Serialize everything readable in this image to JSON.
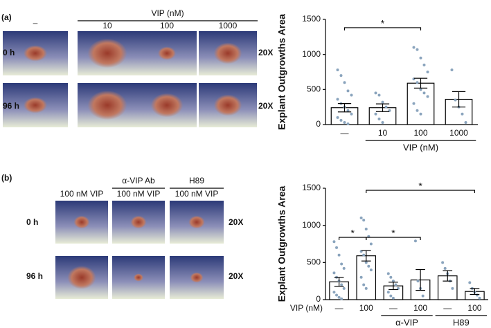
{
  "figure": {
    "panels": [
      {
        "label": "(a)",
        "group_label": "VIP (nM)",
        "columns": [
          "–",
          "10",
          "100",
          "1000"
        ],
        "rows": [
          "0 h",
          "96 h"
        ],
        "magnification": "20X"
      },
      {
        "label": "(b)",
        "column_groups": [
          "α-VIP Ab",
          "H89"
        ],
        "columns": [
          "100 nM VIP",
          "100 nM VIP",
          "100 nM VIP"
        ],
        "rows": [
          "0 h",
          "96 h"
        ],
        "magnification": "20X"
      }
    ]
  },
  "chart_data": [
    {
      "type": "bar",
      "ylabel": "Explant Outgrowths Area",
      "categories": [
        "—",
        "10",
        "100",
        "1000"
      ],
      "values": [
        240,
        240,
        590,
        360
      ],
      "errors": [
        60,
        55,
        70,
        110
      ],
      "points": [
        [
          780,
          700,
          600,
          480,
          420,
          360,
          300,
          250,
          200,
          150,
          100,
          60,
          30,
          10
        ],
        [
          450,
          420,
          320,
          250,
          200,
          150,
          80,
          30
        ],
        [
          1100,
          1070,
          950,
          850,
          750,
          650,
          600,
          500,
          450,
          400,
          300,
          200,
          150
        ],
        [
          780,
          350,
          250,
          150,
          30
        ]
      ],
      "color": "#ffffff",
      "point_color": "#8aa4bd",
      "ylim": [
        0,
        1500
      ],
      "yticks": [
        0,
        500,
        1000,
        1500
      ],
      "group_labels": [
        {
          "label": "VIP (nM)",
          "from": 1,
          "to": 3
        }
      ],
      "significance": [
        {
          "from": 0,
          "to": 2,
          "label": "*"
        }
      ]
    },
    {
      "type": "bar",
      "ylabel": "Explant Outgrowths Area",
      "xlabel": "VIP (nM)",
      "categories": [
        "—",
        "100",
        "—",
        "100",
        "—",
        "100"
      ],
      "values": [
        240,
        590,
        185,
        265,
        320,
        110
      ],
      "errors": [
        60,
        70,
        50,
        140,
        70,
        40
      ],
      "points": [
        [
          780,
          700,
          600,
          480,
          420,
          360,
          300,
          250,
          200,
          150,
          100,
          60,
          30,
          10
        ],
        [
          1100,
          1070,
          950,
          850,
          750,
          650,
          600,
          500,
          450,
          400,
          300,
          200,
          150
        ],
        [
          350,
          300,
          250,
          200,
          150,
          100,
          50,
          20
        ],
        [
          790,
          250,
          150,
          50
        ],
        [
          500,
          420,
          350,
          250,
          150
        ],
        [
          230,
          150,
          100,
          60,
          20
        ]
      ],
      "color": "#ffffff",
      "point_color": "#8aa4bd",
      "ylim": [
        0,
        1500
      ],
      "yticks": [
        0,
        500,
        1000,
        1500
      ],
      "group_labels": [
        {
          "label": "α-VIP",
          "from": 2,
          "to": 3
        },
        {
          "label": "H89",
          "from": 4,
          "to": 5
        }
      ],
      "significance": [
        {
          "from": 0,
          "to": 1,
          "label": "*"
        },
        {
          "from": 1,
          "to": 3,
          "label": "*"
        },
        {
          "from": 1,
          "to": 5,
          "label": "*"
        }
      ]
    }
  ]
}
